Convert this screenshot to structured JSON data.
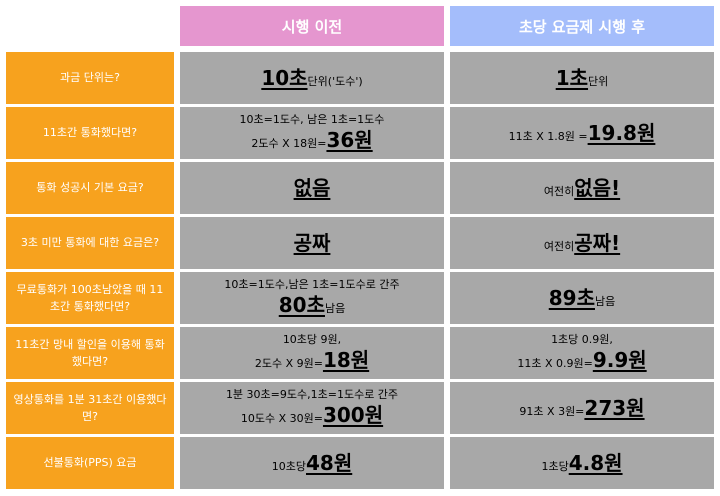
{
  "headers": {
    "before": "시행 이전",
    "after": "초당 요금제 시행 후"
  },
  "rows": [
    {
      "question": "과금 단위는?",
      "before": {
        "lines": [
          {
            "parts": [
              {
                "t": "10초",
                "big": true
              },
              {
                "t": " 단위('도수')"
              }
            ]
          }
        ]
      },
      "after": {
        "lines": [
          {
            "parts": [
              {
                "t": "1초",
                "big": true
              },
              {
                "t": " 단위"
              }
            ]
          }
        ]
      }
    },
    {
      "question": "11초간 통화했다면?",
      "before": {
        "lines": [
          {
            "parts": [
              {
                "t": "10초=1도수, 남은 1초=1도수"
              }
            ]
          },
          {
            "parts": [
              {
                "t": "2도수 X 18원="
              },
              {
                "t": "36원",
                "big": true
              }
            ]
          }
        ]
      },
      "after": {
        "lines": [
          {
            "parts": [
              {
                "t": "11초 X 1.8원 = "
              },
              {
                "t": "19.8원",
                "big": true
              }
            ]
          }
        ]
      }
    },
    {
      "question": "통화 성공시 기본 요금?",
      "before": {
        "lines": [
          {
            "parts": [
              {
                "t": "없음",
                "big": true
              }
            ]
          }
        ]
      },
      "after": {
        "lines": [
          {
            "parts": [
              {
                "t": "여전히 "
              },
              {
                "t": "없음!",
                "big": true
              }
            ]
          }
        ]
      }
    },
    {
      "question": "3초 미만 통화에 대한 요금은?",
      "before": {
        "lines": [
          {
            "parts": [
              {
                "t": "공짜",
                "big": true
              }
            ]
          }
        ]
      },
      "after": {
        "lines": [
          {
            "parts": [
              {
                "t": "여전히 "
              },
              {
                "t": "공짜!",
                "big": true
              }
            ]
          }
        ]
      }
    },
    {
      "question": "무료통화가 100초남았을 때 11초간 통화했다면?",
      "before": {
        "lines": [
          {
            "parts": [
              {
                "t": "10초=1도수,남은 1초=1도수로 간주"
              }
            ]
          },
          {
            "parts": [
              {
                "t": "80초",
                "big": true
              },
              {
                "t": " 남음"
              }
            ]
          }
        ]
      },
      "after": {
        "lines": [
          {
            "parts": [
              {
                "t": "89초",
                "big": true
              },
              {
                "t": " 남음"
              }
            ]
          }
        ]
      }
    },
    {
      "question": "11초간 망내 할인을 이용해 통화했다면?",
      "before": {
        "lines": [
          {
            "parts": [
              {
                "t": "10초당 9원,"
              }
            ]
          },
          {
            "parts": [
              {
                "t": "2도수 X 9원="
              },
              {
                "t": "18원",
                "big": true
              }
            ]
          }
        ]
      },
      "after": {
        "lines": [
          {
            "parts": [
              {
                "t": "1초당 0.9원,"
              }
            ]
          },
          {
            "parts": [
              {
                "t": "11초 X 0.9원="
              },
              {
                "t": "9.9원",
                "big": true
              }
            ]
          }
        ]
      }
    },
    {
      "question": "영상통화를 1분 31초간 이용했다면?",
      "before": {
        "lines": [
          {
            "parts": [
              {
                "t": "1분 30초=9도수,1초=1도수로 간주"
              }
            ]
          },
          {
            "parts": [
              {
                "t": "10도수 X 30원="
              },
              {
                "t": "300원",
                "big": true
              }
            ]
          }
        ]
      },
      "after": {
        "lines": [
          {
            "parts": [
              {
                "t": "91초 X 3원="
              },
              {
                "t": "273원",
                "big": true
              }
            ]
          }
        ]
      }
    },
    {
      "question": "선불통화(PPS) 요금",
      "before": {
        "lines": [
          {
            "parts": [
              {
                "t": "10초당 "
              },
              {
                "t": "48원",
                "big": true
              }
            ]
          }
        ]
      },
      "after": {
        "lines": [
          {
            "parts": [
              {
                "t": "1초당 "
              },
              {
                "t": "4.8원",
                "big": true
              }
            ]
          }
        ]
      }
    }
  ]
}
